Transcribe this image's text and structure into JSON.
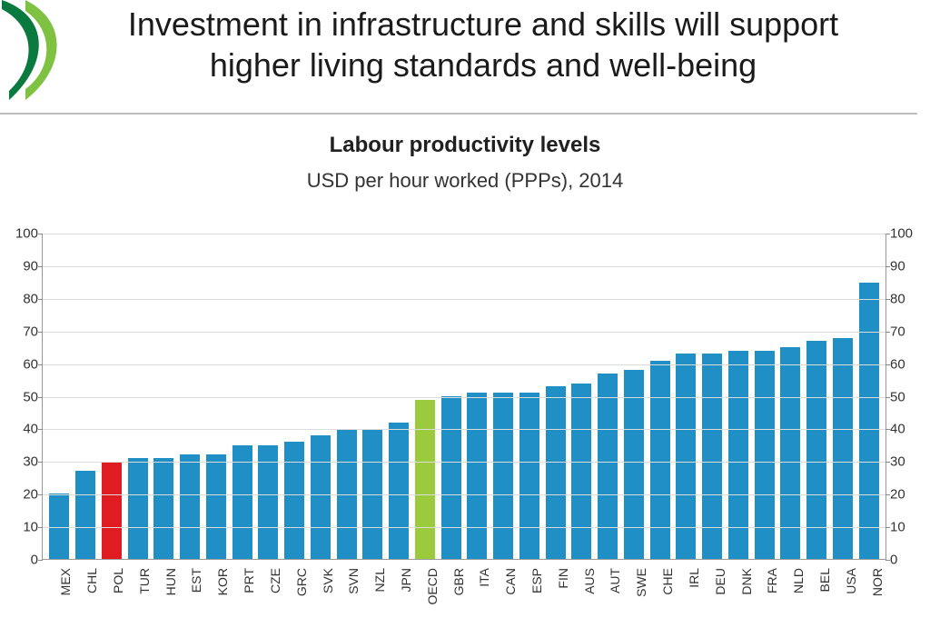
{
  "header": {
    "title": "Investment in infrastructure and skills will support higher living standards and well-being",
    "title_fontsize": 36,
    "title_color": "#1a1a1a",
    "logo_colors": {
      "dark": "#0a7a3f",
      "light": "#7fc241"
    },
    "rule_color": "#bdbdbd"
  },
  "chart": {
    "type": "bar",
    "title": "Labour productivity levels",
    "title_fontsize": 24,
    "title_fontweight": 700,
    "subtitle": "USD per hour worked (PPPs), 2014",
    "subtitle_fontsize": 22,
    "axis": {
      "ymin": 0,
      "ymax": 100,
      "ytick_step": 10,
      "tick_fontsize": 15,
      "axis_color": "#9a9a9a",
      "grid_color": "#dcdcdc",
      "xlabel_fontsize": 14,
      "xlabel_rotation": -90
    },
    "colors": {
      "default": "#1f8fc6",
      "highlight_pol": "#e11b22",
      "highlight_oecd": "#9bcb3c"
    },
    "bar_width": 0.76,
    "background_color": "#ffffff",
    "categories": [
      "MEX",
      "CHL",
      "POL",
      "TUR",
      "HUN",
      "EST",
      "KOR",
      "PRT",
      "CZE",
      "GRC",
      "SVK",
      "SVN",
      "NZL",
      "JPN",
      "OECD",
      "GBR",
      "ITA",
      "CAN",
      "ESP",
      "FIN",
      "AUS",
      "AUT",
      "SWE",
      "CHE",
      "IRL",
      "DEU",
      "DNK",
      "FRA",
      "NLD",
      "BEL",
      "USA",
      "NOR"
    ],
    "values": [
      20,
      27,
      30,
      31,
      31,
      32,
      32,
      35,
      35,
      36,
      38,
      40,
      40,
      42,
      49,
      50,
      51,
      51,
      51,
      53,
      54,
      57,
      58,
      61,
      63,
      63,
      64,
      64,
      65,
      67,
      68,
      85
    ],
    "bar_colors": [
      "#1f8fc6",
      "#1f8fc6",
      "#e11b22",
      "#1f8fc6",
      "#1f8fc6",
      "#1f8fc6",
      "#1f8fc6",
      "#1f8fc6",
      "#1f8fc6",
      "#1f8fc6",
      "#1f8fc6",
      "#1f8fc6",
      "#1f8fc6",
      "#1f8fc6",
      "#9bcb3c",
      "#1f8fc6",
      "#1f8fc6",
      "#1f8fc6",
      "#1f8fc6",
      "#1f8fc6",
      "#1f8fc6",
      "#1f8fc6",
      "#1f8fc6",
      "#1f8fc6",
      "#1f8fc6",
      "#1f8fc6",
      "#1f8fc6",
      "#1f8fc6",
      "#1f8fc6",
      "#1f8fc6",
      "#1f8fc6",
      "#1f8fc6"
    ]
  }
}
